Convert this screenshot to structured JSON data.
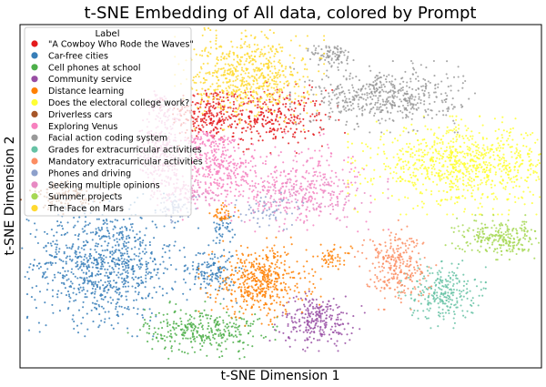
{
  "chart_data": {
    "type": "scatter",
    "title": "t-SNE Embedding of All data, colored by Prompt",
    "xlabel": "t-SNE Dimension 1",
    "ylabel": "t-SNE Dimension 2",
    "grid": false,
    "legend_title": "Label",
    "legend_position": "top-left",
    "ticks": "none",
    "series": [
      {
        "name": "\"A Cowboy Who Rode the Waves\"",
        "color": "#e41a1c",
        "clusters": [
          {
            "x": 0.36,
            "y": 0.74,
            "sx": 0.035,
            "sy": 0.04,
            "n": 220
          },
          {
            "x": 0.48,
            "y": 0.73,
            "sx": 0.055,
            "sy": 0.04,
            "n": 320
          }
        ]
      },
      {
        "name": "Car-free cities",
        "color": "#377eb8",
        "clusters": [
          {
            "x": 0.16,
            "y": 0.3,
            "sx": 0.07,
            "sy": 0.08,
            "n": 900
          },
          {
            "x": 0.37,
            "y": 0.28,
            "sx": 0.022,
            "sy": 0.035,
            "n": 140
          },
          {
            "x": 0.39,
            "y": 0.41,
            "sx": 0.012,
            "sy": 0.018,
            "n": 40
          }
        ]
      },
      {
        "name": "Cell phones at school",
        "color": "#4daf4a",
        "clusters": [
          {
            "x": 0.35,
            "y": 0.11,
            "sx": 0.055,
            "sy": 0.032,
            "n": 330
          }
        ]
      },
      {
        "name": "Community service",
        "color": "#984ea3",
        "clusters": [
          {
            "x": 0.57,
            "y": 0.14,
            "sx": 0.035,
            "sy": 0.035,
            "n": 260
          }
        ]
      },
      {
        "name": "Distance learning",
        "color": "#ff7f00",
        "clusters": [
          {
            "x": 0.46,
            "y": 0.25,
            "sx": 0.045,
            "sy": 0.05,
            "n": 480
          },
          {
            "x": 0.39,
            "y": 0.45,
            "sx": 0.012,
            "sy": 0.015,
            "n": 40
          },
          {
            "x": 0.6,
            "y": 0.32,
            "sx": 0.018,
            "sy": 0.015,
            "n": 50
          }
        ]
      },
      {
        "name": "Does the electoral college work?",
        "color": "#ffff33",
        "clusters": [
          {
            "x": 0.85,
            "y": 0.59,
            "sx": 0.085,
            "sy": 0.055,
            "n": 900
          }
        ]
      },
      {
        "name": "Driverless cars",
        "color": "#a65628",
        "clusters": [
          {
            "x": 0.09,
            "y": 0.5,
            "sx": 0.035,
            "sy": 0.02,
            "n": 120
          }
        ]
      },
      {
        "name": "Exploring Venus",
        "color": "#f781bf",
        "clusters": [
          {
            "x": 0.38,
            "y": 0.58,
            "sx": 0.035,
            "sy": 0.04,
            "n": 260
          },
          {
            "x": 0.36,
            "y": 0.66,
            "sx": 0.025,
            "sy": 0.015,
            "n": 80
          },
          {
            "x": 0.52,
            "y": 0.54,
            "sx": 0.08,
            "sy": 0.055,
            "n": 260
          }
        ]
      },
      {
        "name": "Facial action coding system",
        "color": "#999999",
        "clusters": [
          {
            "x": 0.7,
            "y": 0.79,
            "sx": 0.07,
            "sy": 0.04,
            "n": 520
          },
          {
            "x": 0.6,
            "y": 0.91,
            "sx": 0.02,
            "sy": 0.018,
            "n": 90
          }
        ]
      },
      {
        "name": "Grades for extracurricular activities",
        "color": "#66c2a5",
        "clusters": [
          {
            "x": 0.81,
            "y": 0.22,
            "sx": 0.032,
            "sy": 0.04,
            "n": 260
          }
        ]
      },
      {
        "name": "Mandatory extracurricular activities",
        "color": "#fc8d62",
        "clusters": [
          {
            "x": 0.72,
            "y": 0.3,
            "sx": 0.03,
            "sy": 0.05,
            "n": 280
          }
        ]
      },
      {
        "name": "Phones and driving",
        "color": "#8da0cb",
        "clusters": [
          {
            "x": 0.3,
            "y": 0.47,
            "sx": 0.02,
            "sy": 0.018,
            "n": 70
          },
          {
            "x": 0.47,
            "y": 0.46,
            "sx": 0.035,
            "sy": 0.025,
            "n": 60
          }
        ]
      },
      {
        "name": "Seeking multiple opinions",
        "color": "#e78ac3",
        "clusters": [
          {
            "x": 0.27,
            "y": 0.62,
            "sx": 0.02,
            "sy": 0.06,
            "n": 260
          },
          {
            "x": 0.33,
            "y": 0.51,
            "sx": 0.03,
            "sy": 0.02,
            "n": 90
          },
          {
            "x": 0.55,
            "y": 0.5,
            "sx": 0.06,
            "sy": 0.04,
            "n": 200
          },
          {
            "x": 0.27,
            "y": 0.76,
            "sx": 0.015,
            "sy": 0.022,
            "n": 60
          }
        ]
      },
      {
        "name": "Summer projects",
        "color": "#a6d854",
        "clusters": [
          {
            "x": 0.92,
            "y": 0.38,
            "sx": 0.04,
            "sy": 0.025,
            "n": 260
          }
        ]
      },
      {
        "name": "The Face on Mars",
        "color": "#ffd92f",
        "clusters": [
          {
            "x": 0.44,
            "y": 0.85,
            "sx": 0.055,
            "sy": 0.06,
            "n": 650
          }
        ]
      }
    ]
  }
}
